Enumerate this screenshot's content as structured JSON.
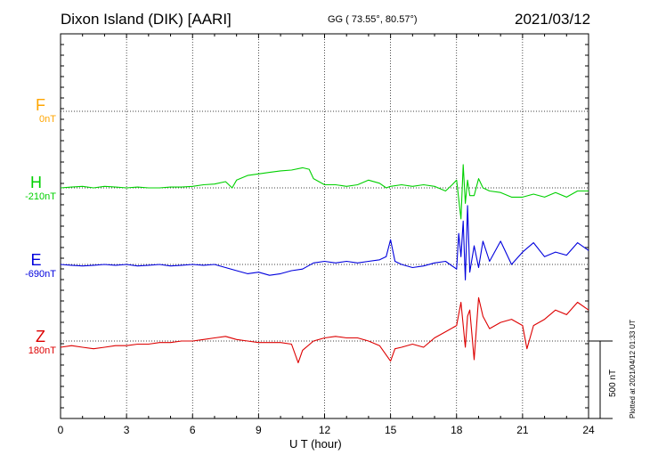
{
  "header": {
    "station": "Dixon Island (DIK)  [AARI]",
    "coords": "GG ( 73.55°,  80.57°)",
    "date": "2021/03/12"
  },
  "components": [
    {
      "name": "F",
      "base": "0nT",
      "color": "#FFA500"
    },
    {
      "name": "H",
      "base": "-210nT",
      "color": "#00D000"
    },
    {
      "name": "E",
      "base": "-690nT",
      "color": "#0000DD"
    },
    {
      "name": "Z",
      "base": "180nT",
      "color": "#DD0000"
    }
  ],
  "scale_label": "500 nT",
  "plotted_note": "Plotted at 2021/04/12 01:33 UT",
  "chart_data": {
    "type": "line",
    "xlabel": "U T (hour)",
    "xlim": [
      0,
      24
    ],
    "xticks": [
      "0",
      "3",
      "6",
      "9",
      "12",
      "15",
      "18",
      "21",
      "24"
    ],
    "scale_bar_nT": 500,
    "series": [
      {
        "name": "H",
        "color": "#00D000",
        "x": [
          0,
          0.5,
          1,
          1.5,
          2,
          2.5,
          3,
          3.5,
          4,
          4.5,
          5,
          5.5,
          6,
          6.5,
          7,
          7.5,
          7.8,
          8,
          8.5,
          9,
          9.5,
          10,
          10.5,
          11,
          11.3,
          11.5,
          12,
          12.5,
          13,
          13.5,
          14,
          14.5,
          14.8,
          15,
          15.5,
          16,
          16.5,
          17,
          17.5,
          17.8,
          18,
          18.2,
          18.3,
          18.4,
          18.5,
          18.6,
          18.8,
          19,
          19.2,
          19.5,
          20,
          20.5,
          21,
          21.5,
          22,
          22.5,
          23,
          23.5,
          24
        ],
        "y": [
          0,
          5,
          10,
          0,
          10,
          5,
          0,
          5,
          0,
          0,
          5,
          5,
          10,
          20,
          25,
          40,
          0,
          50,
          80,
          90,
          100,
          110,
          115,
          130,
          120,
          60,
          20,
          20,
          10,
          20,
          50,
          30,
          0,
          10,
          20,
          10,
          20,
          10,
          -20,
          20,
          50,
          -200,
          150,
          -100,
          50,
          -50,
          -50,
          60,
          0,
          -20,
          -30,
          -60,
          -60,
          -40,
          -60,
          -30,
          -60,
          -20,
          -20
        ]
      },
      {
        "name": "E",
        "color": "#0000DD",
        "x": [
          0,
          0.5,
          1,
          1.5,
          2,
          2.5,
          3,
          3.5,
          4,
          4.5,
          5,
          5.5,
          6,
          6.5,
          7,
          7.5,
          8,
          8.5,
          9,
          9.5,
          10,
          10.5,
          11,
          11.5,
          12,
          12.5,
          13,
          13.5,
          14,
          14.5,
          14.8,
          15,
          15.2,
          15.5,
          16,
          16.5,
          17,
          17.5,
          18,
          18.1,
          18.2,
          18.3,
          18.4,
          18.5,
          18.6,
          18.8,
          19,
          19.2,
          19.5,
          20,
          20.5,
          21,
          21.5,
          22,
          22.5,
          23,
          23.5,
          24
        ],
        "y": [
          0,
          -5,
          -10,
          -5,
          0,
          -5,
          0,
          -10,
          -5,
          0,
          -10,
          -5,
          0,
          -5,
          0,
          -20,
          -40,
          -60,
          -50,
          -70,
          -60,
          -40,
          -30,
          10,
          20,
          10,
          20,
          10,
          20,
          30,
          50,
          160,
          20,
          0,
          -20,
          -10,
          10,
          20,
          -30,
          200,
          50,
          280,
          -100,
          380,
          -50,
          120,
          -20,
          150,
          20,
          150,
          0,
          80,
          140,
          50,
          80,
          60,
          140,
          90
        ]
      },
      {
        "name": "Z",
        "color": "#DD0000",
        "x": [
          0,
          0.5,
          1,
          1.5,
          2,
          2.5,
          3,
          3.5,
          4,
          4.5,
          5,
          5.5,
          6,
          6.5,
          7,
          7.5,
          8,
          8.5,
          9,
          9.5,
          10,
          10.5,
          10.8,
          11,
          11.5,
          12,
          12.5,
          13,
          13.5,
          14,
          14.5,
          15,
          15.2,
          15.5,
          16,
          16.5,
          17,
          17.5,
          18,
          18.2,
          18.4,
          18.5,
          18.6,
          18.8,
          19,
          19.2,
          19.5,
          20,
          20.5,
          21,
          21.2,
          21.5,
          22,
          22.5,
          23,
          23.5,
          24
        ],
        "y": [
          -40,
          -30,
          -40,
          -50,
          -40,
          -30,
          -30,
          -20,
          -20,
          -10,
          -10,
          0,
          0,
          10,
          20,
          30,
          10,
          0,
          -10,
          -10,
          -10,
          -20,
          -140,
          -60,
          0,
          20,
          30,
          20,
          20,
          0,
          -30,
          -130,
          -50,
          -40,
          -20,
          -40,
          20,
          60,
          100,
          250,
          -40,
          160,
          200,
          -120,
          280,
          160,
          80,
          120,
          140,
          100,
          -50,
          100,
          140,
          200,
          170,
          250,
          200
        ]
      }
    ]
  }
}
